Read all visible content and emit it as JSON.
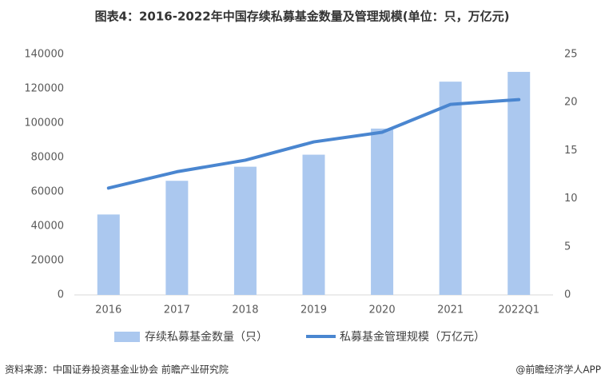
{
  "chart_data": {
    "type": "bar",
    "title": "图表4：2016-2022年中国存续私募基金数量及管理规模(单位：只，万亿元)",
    "categories": [
      "2016",
      "2017",
      "2018",
      "2019",
      "2020",
      "2021",
      "2022Q1"
    ],
    "series": [
      {
        "name": "存续私募基金数量（只）",
        "type": "bar",
        "color": "#abc8ef",
        "values": [
          46800,
          66400,
          74600,
          81600,
          96800,
          124100,
          129800
        ]
      },
      {
        "name": "私募基金管理规模（万亿元）",
        "type": "line",
        "axis": "y2",
        "color": "#4a86d0",
        "values": [
          11.1,
          12.8,
          14.0,
          15.9,
          16.9,
          19.8,
          20.3
        ]
      }
    ],
    "ylim": [
      0,
      140000
    ],
    "yticks": [
      0,
      20000,
      40000,
      60000,
      80000,
      100000,
      120000,
      140000
    ],
    "y2lim": [
      0,
      25
    ],
    "y2ticks": [
      0,
      5,
      10,
      15,
      20,
      25
    ],
    "grid": false,
    "legend": "bottom",
    "source": "资料来源：中国证券投资基金业协会 前瞻产业研究院",
    "credit": "@前瞻经济学人APP"
  }
}
